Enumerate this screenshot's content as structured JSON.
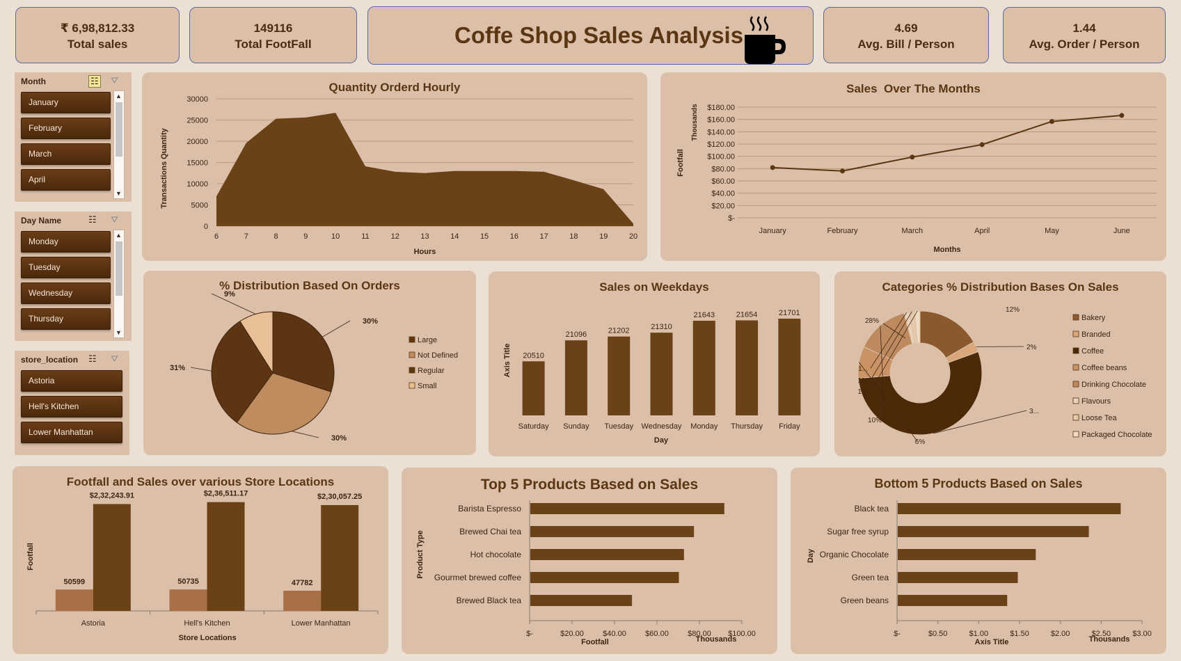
{
  "kpis": {
    "total_sales_value": "₹ 6,98,812.33",
    "total_sales_label": "Total sales",
    "footfall_value": "149116",
    "footfall_label": "Total FootFall",
    "avg_bill_value": "4.69",
    "avg_bill_label": "Avg. Bill / Person",
    "avg_order_value": "1.44",
    "avg_order_label": "Avg. Order / Person"
  },
  "dashboard_title": "Coffe Shop Sales Analysis",
  "slicers": {
    "month": {
      "header": "Month",
      "items": [
        "January",
        "February",
        "March",
        "April"
      ]
    },
    "day": {
      "header": "Day Name",
      "items": [
        "Monday",
        "Tuesday",
        "Wednesday",
        "Thursday"
      ]
    },
    "location": {
      "header": "store_location",
      "items": [
        "Astoria",
        "Hell's Kitchen",
        "Lower Manhattan"
      ]
    }
  },
  "colors": {
    "dark": "#6b4117",
    "darkest": "#4d2a07",
    "tan": "#bf8c5f",
    "light": "#e9bf97",
    "panel": "#dbbfa9",
    "bg": "#ecdfd3"
  },
  "chart_data": [
    {
      "id": "hourly",
      "type": "area",
      "title": "Quantity Orderd Hourly",
      "xlabel": "Hours",
      "ylabel": "Transactions Quantity",
      "x": [
        6,
        7,
        8,
        9,
        10,
        11,
        12,
        13,
        14,
        15,
        16,
        17,
        18,
        19,
        20
      ],
      "values": [
        7000,
        19600,
        25300,
        25600,
        26700,
        14100,
        12800,
        12500,
        13000,
        13000,
        13000,
        12800,
        10800,
        8700,
        600
      ],
      "ylim": [
        0,
        30000
      ],
      "yticks": [
        "30000",
        "25000",
        "20000",
        "15000",
        "10000",
        "5000",
        "0"
      ]
    },
    {
      "id": "monthly",
      "type": "line",
      "title": "Sales  Over The Months",
      "xlabel": "Months",
      "ylabel": "Footfall",
      "yunit": "Thousands",
      "categories": [
        "January",
        "February",
        "March",
        "April",
        "May",
        "June"
      ],
      "values": [
        81.7,
        76.1,
        98.8,
        119.0,
        156.7,
        166.5
      ],
      "ylim": [
        0,
        180
      ],
      "yticks": [
        "$180.00",
        "$160.00",
        "$140.00",
        "$120.00",
        "$100.00",
        "$80.00",
        "$60.00",
        "$40.00",
        "$20.00",
        "$-"
      ]
    },
    {
      "id": "orders_pie",
      "type": "pie",
      "title": "% Distribution Based On Orders",
      "categories": [
        "Large",
        "Not Defined",
        "Regular",
        "Small"
      ],
      "values": [
        30,
        30,
        31,
        9
      ],
      "labels": [
        "30%",
        "30%",
        "31%",
        "9%"
      ],
      "colors": [
        "#5e3512",
        "#bf8c5f",
        "#5e3512",
        "#e9bf97"
      ]
    },
    {
      "id": "weekdays",
      "type": "bar",
      "title": "Sales on Weekdays",
      "xlabel": "Day",
      "ylabel": "Axis Title",
      "categories": [
        "Saturday",
        "Sunday",
        "Tuesday",
        "Wednesday",
        "Monday",
        "Thursday",
        "Friday"
      ],
      "values": [
        20510,
        21096,
        21202,
        21310,
        21643,
        21654,
        21701
      ],
      "labels": [
        "20510",
        "21096",
        "21202",
        "21310",
        "21643",
        "21654",
        "21701"
      ]
    },
    {
      "id": "categories",
      "type": "pie",
      "title": "Categories % Distribution Bases On Sales",
      "categories": [
        "Bakery",
        "Branded",
        "Coffee",
        "Coffee beans",
        "Drinking Chocolate",
        "Flavours",
        "Loose Tea",
        "Packaged Chocolate"
      ],
      "values": [
        12,
        2,
        39,
        6,
        10,
        1,
        1,
        1
      ],
      "labels": [
        "12%",
        "2%",
        "3...",
        "6%",
        "10%",
        "1...",
        "1%",
        "1%"
      ],
      "extra_label": "28%",
      "colors": [
        "#8a5a2e",
        "#d9a77a",
        "#4d2a07",
        "#c99366",
        "#bd8a60",
        "#ead2b8",
        "#e5c9ab",
        "#f0dcc5"
      ]
    },
    {
      "id": "locations",
      "type": "bar",
      "title": "Footfall and Sales over various Store Locations",
      "xlabel": "Store Locations",
      "ylabel": "Footfall",
      "categories": [
        "Astoria",
        "Hell's Kitchen",
        "Lower Manhattan"
      ],
      "series": [
        {
          "name": "Footfall",
          "values": [
            50599,
            50735,
            47782
          ],
          "labels": [
            "50599",
            "50735",
            "47782"
          ]
        },
        {
          "name": "Sales",
          "values": [
            232243.91,
            236511.17,
            230057.25
          ],
          "labels": [
            "$2,32,243.91",
            "$2,36,511.17",
            "$2,30,057.25"
          ]
        }
      ]
    },
    {
      "id": "top5",
      "type": "bar",
      "title": "Top 5 Products Based on Sales",
      "xlabel": "Footfall",
      "ylabel": "Product Type",
      "xunit": "Thousands",
      "categories": [
        "Barista Espresso",
        "Brewed Chai tea",
        "Hot chocolate",
        "Gourmet brewed coffee",
        "Brewed Black tea"
      ],
      "values": [
        91.4,
        77.1,
        72.4,
        70.0,
        47.9
      ],
      "xlim": [
        0,
        100
      ],
      "xticks": [
        "$-",
        "$20.00",
        "$40.00",
        "$60.00",
        "$80.00",
        "$100.00"
      ]
    },
    {
      "id": "bottom5",
      "type": "bar",
      "title": "Bottom 5 Products Based on Sales",
      "xlabel": "Axis Title",
      "ylabel": "Day",
      "xunit": "Thousands",
      "categories": [
        "Black tea",
        "Sugar free syrup",
        "Organic Chocolate",
        "Green tea",
        "Green beans"
      ],
      "values": [
        2.73,
        2.34,
        1.69,
        1.47,
        1.34
      ],
      "xlim": [
        0,
        3
      ],
      "xticks": [
        "$-",
        "$0.50",
        "$1.00",
        "$1.50",
        "$2.00",
        "$2.50",
        "$3.00"
      ]
    }
  ]
}
